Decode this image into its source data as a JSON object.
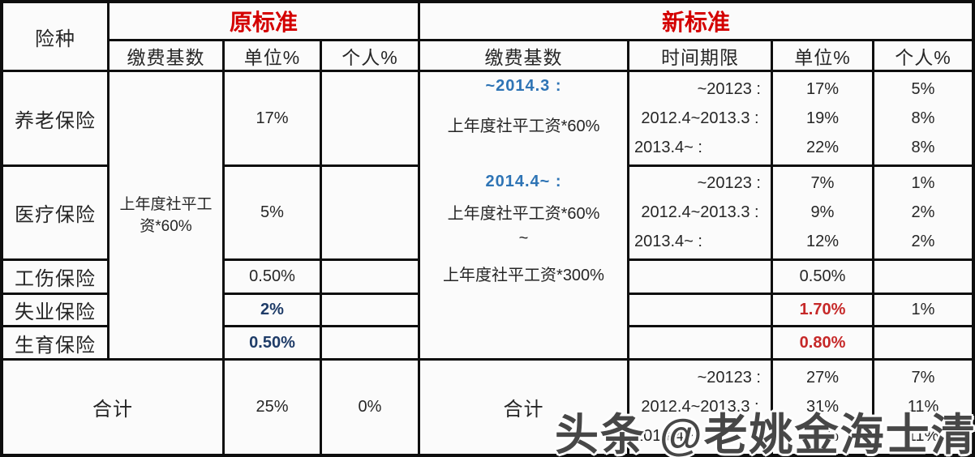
{
  "watermark": "头条 @老姚金海士清",
  "colors": {
    "header_red": "#d40000",
    "date_blue": "#2e74b5",
    "value_navy": "#1f3c68",
    "value_red": "#c62828",
    "border": "#0e0e0e",
    "cell_bg": "#fbfbfb"
  },
  "table": {
    "corner": "险种",
    "rows": {
      "pension": "养老保险",
      "medical": "医疗保险",
      "injury": "工伤保险",
      "unemployment": "失业保险",
      "maternity": "生育保险",
      "total": "合计"
    },
    "old": {
      "title": "原标准",
      "columns": [
        "缴费基数",
        "单位%",
        "个人%"
      ],
      "base": "上年度社平工资*60%",
      "unit": {
        "pension": "17%",
        "medical": "5%",
        "injury": "0.50%",
        "unemployment": "2%",
        "maternity": "0.50%"
      },
      "personal": {
        "pension": "",
        "medical": "",
        "injury": "",
        "unemployment": "",
        "maternity": ""
      },
      "total": {
        "label": "合计",
        "unit": "25%",
        "personal": "0%"
      }
    },
    "new": {
      "title": "新标准",
      "columns": [
        "缴费基数",
        "时间期限",
        "单位%",
        "个人%"
      ],
      "base": {
        "period1": "~2014.3 :",
        "base1": "上年度社平工资*60%",
        "period2": "2014.4~ :",
        "base2": "上年度社平工资*60%",
        "tilde": "~",
        "base3": "上年度社平工资*300%"
      },
      "periods": [
        "~20123 :",
        "2012.4~2013.3 :",
        "2013.4~ :"
      ],
      "pension": {
        "unit": [
          "17%",
          "19%",
          "22%"
        ],
        "personal": [
          "5%",
          "8%",
          "8%"
        ]
      },
      "medical": {
        "unit": [
          "7%",
          "9%",
          "12%"
        ],
        "personal": [
          "1%",
          "2%",
          "2%"
        ]
      },
      "injury": {
        "unit": "0.50%",
        "personal": ""
      },
      "unemployment": {
        "unit": "1.70%",
        "personal": "1%"
      },
      "maternity": {
        "unit": "0.80%",
        "personal": ""
      },
      "total": {
        "label": "合计",
        "unit": [
          "27%",
          "31%",
          "37%"
        ],
        "personal": [
          "7%",
          "11%",
          "11%"
        ]
      }
    }
  }
}
